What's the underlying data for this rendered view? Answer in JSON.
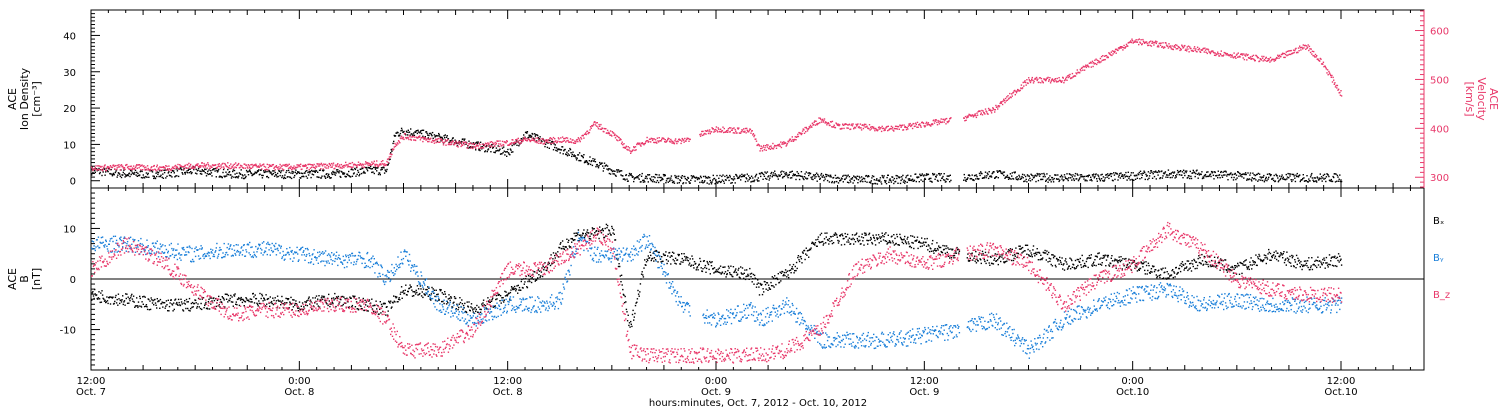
{
  "chart_data": [
    {
      "type": "scatter",
      "panel": "top",
      "ylabel_left": [
        "ACE",
        "Ion Density",
        "[cm⁻³]"
      ],
      "ylabel_right": [
        "ACE",
        "Velocity",
        "[km/s]"
      ],
      "ylim_left": [
        -2,
        47
      ],
      "ylim_right": [
        278,
        642
      ],
      "yticks_left": [
        "0",
        "10",
        "20",
        "30",
        "40"
      ],
      "yticks_right": [
        "300",
        "400",
        "500",
        "600"
      ],
      "right_axis_color": "#e8386a",
      "series": [
        {
          "color": "#000000",
          "axis": "left",
          "x": [
            0,
            2,
            4,
            6,
            8,
            10,
            12,
            14,
            16,
            17,
            17.5,
            18,
            20,
            22,
            24,
            25,
            26,
            28,
            30,
            31,
            32,
            34,
            36,
            38,
            40,
            42,
            44,
            46,
            48,
            50,
            52,
            54,
            56,
            58,
            60,
            62,
            64,
            66,
            68,
            70,
            72
          ],
          "y": [
            3,
            2,
            2,
            3,
            2,
            2,
            2,
            2,
            3,
            3,
            13,
            14,
            12,
            10,
            8,
            13,
            11,
            7,
            3,
            1,
            1,
            0.5,
            0.5,
            1,
            2,
            1,
            0.5,
            0.5,
            1,
            1,
            2,
            1,
            1,
            1,
            1.5,
            2,
            2,
            1.5,
            1,
            1,
            1
          ]
        },
        {
          "color": "#e8386a",
          "axis": "right",
          "x": [
            0,
            2,
            4,
            6,
            8,
            10,
            12,
            14,
            16,
            17,
            17.5,
            18,
            20,
            22,
            24,
            25,
            26,
            27,
            28,
            29,
            30,
            31,
            32,
            34,
            36,
            38,
            38.5,
            40,
            42,
            43,
            44,
            46,
            48,
            50,
            52,
            54,
            56,
            58,
            60,
            62,
            64,
            66,
            68,
            70,
            71,
            72
          ],
          "y": [
            320,
            322,
            320,
            325,
            325,
            322,
            322,
            325,
            328,
            330,
            370,
            385,
            375,
            365,
            372,
            378,
            375,
            378,
            375,
            410,
            390,
            355,
            378,
            375,
            400,
            395,
            360,
            370,
            420,
            405,
            405,
            400,
            410,
            420,
            440,
            500,
            500,
            540,
            580,
            570,
            560,
            550,
            540,
            570,
            530,
            470
          ]
        }
      ]
    },
    {
      "type": "scatter",
      "panel": "bottom",
      "ylabel_left": [
        "ACE",
        "B",
        "[nT]"
      ],
      "ylim": [
        -18,
        18
      ],
      "yticks": [
        "-10",
        "0",
        "10"
      ],
      "legend": [
        "Bₓ",
        "Bᵧ",
        "B_z"
      ],
      "series": [
        {
          "name": "Bₓ",
          "color": "#000000",
          "x": [
            0,
            2,
            4,
            6,
            8,
            10,
            12,
            14,
            16,
            17,
            18,
            20,
            22,
            24,
            26,
            27,
            28,
            29,
            30,
            31,
            32,
            34,
            36,
            38,
            38.5,
            40,
            42,
            44,
            46,
            48,
            50,
            52,
            54,
            56,
            58,
            60,
            62,
            64,
            66,
            68,
            70,
            72
          ],
          "y": [
            -3,
            -4,
            -5,
            -5,
            -4,
            -4,
            -5,
            -4,
            -5,
            -6,
            -2,
            -3,
            -6,
            -3,
            2,
            6,
            9,
            9,
            10,
            -10,
            5,
            4,
            2,
            1,
            -2,
            1,
            8,
            8,
            8,
            7,
            5,
            4,
            6,
            3,
            4,
            3,
            1,
            4,
            2,
            5,
            3,
            4
          ]
        },
        {
          "name": "Bᵧ",
          "color": "#1a7fd9",
          "x": [
            0,
            2,
            4,
            6,
            8,
            10,
            12,
            14,
            16,
            17,
            18,
            20,
            22,
            24,
            26,
            27,
            28,
            29,
            30,
            31,
            32,
            34,
            36,
            38,
            38.5,
            40,
            42,
            44,
            46,
            48,
            50,
            52,
            54,
            56,
            58,
            60,
            62,
            64,
            66,
            68,
            70,
            72
          ],
          "y": [
            7,
            7,
            6,
            5,
            6,
            6,
            5,
            4,
            4,
            0,
            5,
            -5,
            -8,
            -5,
            -5,
            -4,
            8,
            5,
            5,
            5,
            8,
            -5,
            -8,
            -6,
            -8,
            -5,
            -12,
            -12,
            -12,
            -11,
            -10,
            -8,
            -14,
            -8,
            -5,
            -3,
            -2,
            -5,
            -4,
            -5,
            -5,
            -5
          ]
        },
        {
          "name": "B_z",
          "color": "#e8386a",
          "x": [
            0,
            2,
            4,
            6,
            8,
            10,
            12,
            14,
            16,
            17,
            18,
            20,
            22,
            24,
            26,
            27,
            28,
            29,
            30,
            31,
            32,
            34,
            36,
            38,
            38.5,
            40,
            42,
            44,
            46,
            48,
            50,
            52,
            54,
            56,
            58,
            60,
            62,
            64,
            66,
            68,
            70,
            72
          ],
          "y": [
            2,
            7,
            4,
            -2,
            -7,
            -6,
            -6,
            -5,
            -5,
            -8,
            -14,
            -14,
            -10,
            2,
            2,
            4,
            6,
            9,
            7,
            -14,
            -15,
            -15,
            -15,
            -15,
            -15,
            -14,
            -10,
            2,
            5,
            3,
            5,
            6,
            3,
            -5,
            0,
            3,
            10,
            6,
            0,
            -2,
            -3,
            -3
          ]
        }
      ]
    }
  ],
  "x_axis": {
    "ticks": [
      {
        "time": "12:00",
        "date": "Oct. 7"
      },
      {
        "time": "0:00",
        "date": "Oct. 8"
      },
      {
        "time": "12:00",
        "date": "Oct. 8"
      },
      {
        "time": "0:00",
        "date": "Oct. 9"
      },
      {
        "time": "12:00",
        "date": "Oct. 9"
      },
      {
        "time": "0:00",
        "date": "Oct.10"
      },
      {
        "time": "12:00",
        "date": "Oct.10"
      }
    ],
    "xlabel": "hours:minutes, Oct.  7, 2012 - Oct. 10, 2012"
  }
}
